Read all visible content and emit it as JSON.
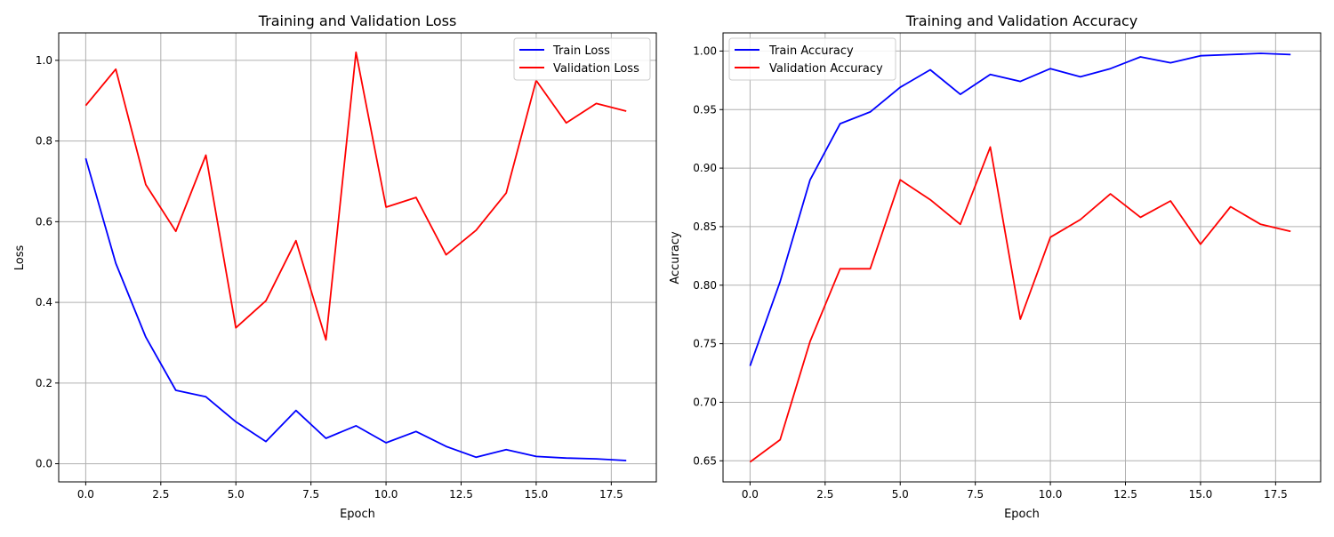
{
  "chart_data": [
    {
      "type": "line",
      "title": "Training and Validation Loss",
      "xlabel": "Epoch",
      "ylabel": "Loss",
      "xlim": [
        -0.9,
        19.0
      ],
      "ylim": [
        -0.045,
        1.068
      ],
      "xticks": [
        0,
        2.5,
        5,
        7.5,
        10,
        12.5,
        15,
        17.5
      ],
      "xtick_labels": [
        "0.0",
        "2.5",
        "5.0",
        "7.5",
        "10.0",
        "12.5",
        "15.0",
        "17.5"
      ],
      "yticks": [
        0,
        0.2,
        0.4,
        0.6,
        0.8,
        1.0
      ],
      "ytick_labels": [
        "0.0",
        "0.2",
        "0.4",
        "0.6",
        "0.8",
        "1.0"
      ],
      "grid": true,
      "legend_position": "top-right",
      "x": [
        0,
        1,
        2,
        3,
        4,
        5,
        6,
        7,
        8,
        9,
        10,
        11,
        12,
        13,
        14,
        15,
        16,
        17,
        18
      ],
      "series": [
        {
          "name": "Train Loss",
          "color": "#0000ff",
          "values": [
            0.757,
            0.497,
            0.314,
            0.182,
            0.166,
            0.104,
            0.055,
            0.132,
            0.063,
            0.094,
            0.052,
            0.08,
            0.043,
            0.016,
            0.035,
            0.018,
            0.014,
            0.012,
            0.008
          ]
        },
        {
          "name": "Validation Loss",
          "color": "#ff0000",
          "values": [
            0.888,
            0.978,
            0.692,
            0.576,
            0.765,
            0.337,
            0.404,
            0.553,
            0.307,
            1.02,
            0.636,
            0.66,
            0.518,
            0.579,
            0.671,
            0.95,
            0.845,
            0.893,
            0.874
          ]
        }
      ]
    },
    {
      "type": "line",
      "title": "Training and Validation Accuracy",
      "xlabel": "Epoch",
      "ylabel": "Accuracy",
      "xlim": [
        -0.9,
        19.0
      ],
      "ylim": [
        0.632,
        1.0155
      ],
      "xticks": [
        0,
        2.5,
        5,
        7.5,
        10,
        12.5,
        15,
        17.5
      ],
      "xtick_labels": [
        "0.0",
        "2.5",
        "5.0",
        "7.5",
        "10.0",
        "12.5",
        "15.0",
        "17.5"
      ],
      "yticks": [
        0.65,
        0.7,
        0.75,
        0.8,
        0.85,
        0.9,
        0.95,
        1.0
      ],
      "ytick_labels": [
        "0.65",
        "0.70",
        "0.75",
        "0.80",
        "0.85",
        "0.90",
        "0.95",
        "1.00"
      ],
      "grid": true,
      "legend_position": "top-left",
      "x": [
        0,
        1,
        2,
        3,
        4,
        5,
        6,
        7,
        8,
        9,
        10,
        11,
        12,
        13,
        14,
        15,
        16,
        17,
        18
      ],
      "series": [
        {
          "name": "Train Accuracy",
          "color": "#0000ff",
          "values": [
            0.731,
            0.803,
            0.89,
            0.938,
            0.948,
            0.969,
            0.984,
            0.963,
            0.98,
            0.974,
            0.985,
            0.978,
            0.985,
            0.995,
            0.99,
            0.996,
            0.997,
            0.998,
            0.997
          ]
        },
        {
          "name": "Validation Accuracy",
          "color": "#ff0000",
          "values": [
            0.649,
            0.668,
            0.752,
            0.814,
            0.814,
            0.89,
            0.873,
            0.852,
            0.918,
            0.771,
            0.841,
            0.856,
            0.878,
            0.858,
            0.872,
            0.835,
            0.867,
            0.852,
            0.846
          ]
        }
      ]
    }
  ]
}
